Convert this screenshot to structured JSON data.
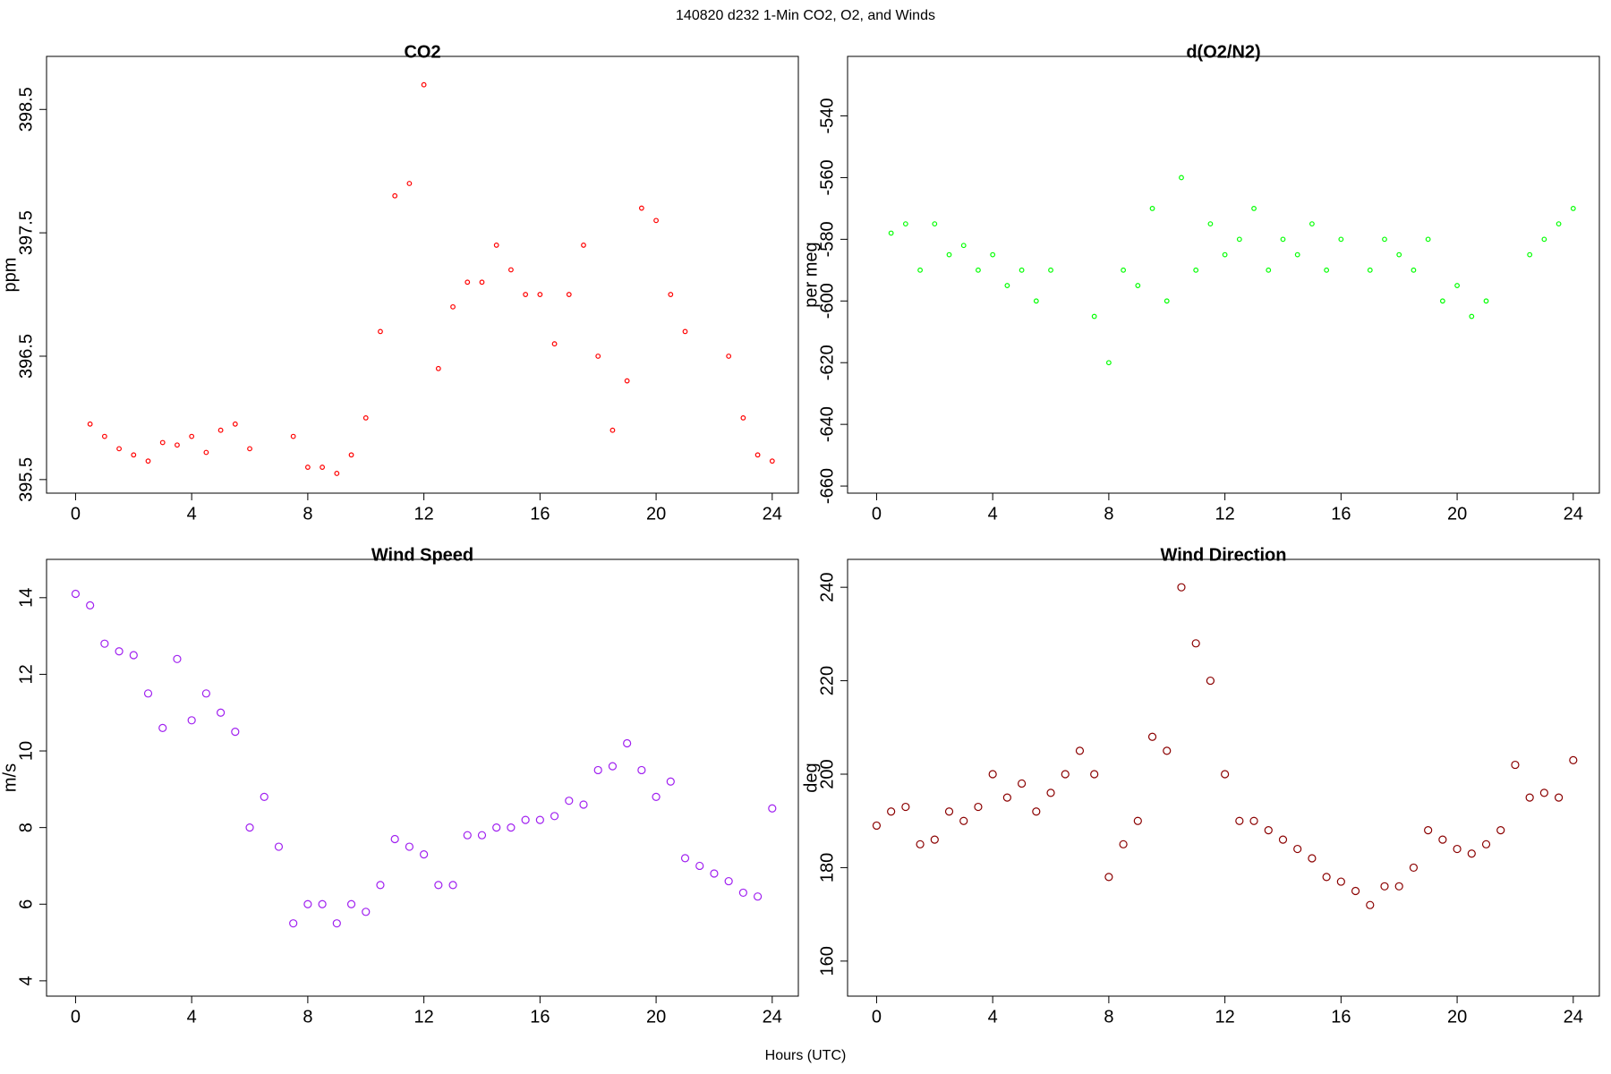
{
  "title": "140820   d232   1-Min CO2, O2, and Winds",
  "x_label": "Hours (UTC)",
  "chart_data": [
    {
      "type": "scatter",
      "title": "CO2",
      "y_label": "ppm",
      "color": "#ff0000",
      "x": [
        0,
        0.5,
        1,
        1.5,
        2,
        2.5,
        3,
        3.5,
        4,
        4.5,
        5,
        5.5,
        6,
        6.5,
        7,
        7.5,
        8,
        8.5,
        9,
        9.5,
        10,
        10.5,
        11,
        11.5,
        12,
        12.5,
        13,
        13.5,
        14,
        14.5,
        15,
        15.5,
        16,
        16.5,
        17,
        17.5,
        18,
        18.5,
        19,
        19.5,
        20,
        20.5,
        21,
        21.5,
        22,
        22.5,
        23,
        23.5,
        24
      ],
      "values": [
        null,
        395.95,
        395.85,
        395.75,
        395.7,
        395.65,
        395.8,
        395.78,
        395.85,
        395.72,
        395.9,
        395.95,
        395.75,
        null,
        null,
        395.85,
        395.6,
        395.6,
        395.55,
        395.7,
        396.0,
        396.7,
        397.8,
        397.9,
        398.7,
        396.4,
        396.9,
        397.1,
        397.1,
        397.4,
        397.2,
        397.0,
        397.0,
        396.6,
        397.0,
        397.4,
        396.5,
        395.9,
        396.3,
        397.7,
        397.6,
        397.0,
        396.7,
        null,
        null,
        396.5,
        396.0,
        395.7,
        395.65
      ],
      "xlim": [
        -1,
        24.9
      ],
      "ylim": [
        395.39,
        398.93
      ],
      "xticks": [
        0,
        4,
        8,
        12,
        16,
        20,
        24
      ],
      "yticks": [
        395.5,
        396.5,
        397.5,
        398.5
      ]
    },
    {
      "type": "scatter",
      "title": "d(O2/N2)",
      "y_label": "per meg",
      "color": "#00ff00",
      "x": [
        0,
        0.5,
        1,
        1.5,
        2,
        2.5,
        3,
        3.5,
        4,
        4.5,
        5,
        5.5,
        6,
        6.5,
        7,
        7.5,
        8,
        8.5,
        9,
        9.5,
        10,
        10.5,
        11,
        11.5,
        12,
        12.5,
        13,
        13.5,
        14,
        14.5,
        15,
        15.5,
        16,
        16.5,
        17,
        17.5,
        18,
        18.5,
        19,
        19.5,
        20,
        20.5,
        21,
        21.5,
        22,
        22.5,
        23,
        23.5,
        24
      ],
      "values": [
        null,
        -578,
        -575,
        -590,
        -575,
        -585,
        -582,
        -590,
        -585,
        -595,
        -590,
        -600,
        -590,
        null,
        null,
        -605,
        -620,
        -590,
        -595,
        -570,
        -600,
        -560,
        -590,
        -575,
        -585,
        -580,
        -570,
        -590,
        -580,
        -585,
        -575,
        -590,
        -580,
        null,
        -590,
        -580,
        -585,
        -590,
        -580,
        -600,
        -595,
        -605,
        -600,
        null,
        null,
        -585,
        -580,
        -575,
        -570
      ],
      "xlim": [
        -1,
        24.9
      ],
      "ylim": [
        -662.3,
        -520.7
      ],
      "xticks": [
        0,
        4,
        8,
        12,
        16,
        20,
        24
      ],
      "yticks": [
        -660,
        -640,
        -620,
        -600,
        -580,
        -560,
        -540
      ]
    },
    {
      "type": "scatter",
      "title": "Wind Speed",
      "y_label": "m/s",
      "color": "#a020f0",
      "x": [
        0,
        0.5,
        1,
        1.5,
        2,
        2.5,
        3,
        3.5,
        4,
        4.5,
        5,
        5.5,
        6,
        6.5,
        7,
        7.5,
        8,
        8.5,
        9,
        9.5,
        10,
        10.5,
        11,
        11.5,
        12,
        12.5,
        13,
        13.5,
        14,
        14.5,
        15,
        15.5,
        16,
        16.5,
        17,
        17.5,
        18,
        18.5,
        19,
        19.5,
        20,
        20.5,
        21,
        21.5,
        22,
        22.5,
        23,
        23.5,
        24
      ],
      "values": [
        14.1,
        13.8,
        12.8,
        12.6,
        12.5,
        11.5,
        10.6,
        12.4,
        10.8,
        11.5,
        11,
        10.5,
        8,
        8.8,
        7.5,
        5.5,
        6,
        6,
        5.5,
        6,
        5.8,
        6.5,
        7.7,
        7.5,
        7.3,
        6.5,
        6.5,
        7.8,
        7.8,
        8,
        8,
        8.2,
        8.2,
        8.3,
        8.7,
        8.6,
        9.5,
        9.6,
        10.2,
        9.5,
        8.8,
        9.2,
        7.2,
        7,
        6.8,
        6.6,
        6.3,
        6.2,
        8.5
      ],
      "xlim": [
        -1,
        24.9
      ],
      "ylim": [
        3.6,
        15.0
      ],
      "xticks": [
        0,
        4,
        8,
        12,
        16,
        20,
        24
      ],
      "yticks": [
        4,
        6,
        8,
        10,
        12,
        14
      ]
    },
    {
      "type": "scatter",
      "title": "Wind Direction",
      "y_label": "deg",
      "color": "#8b0000",
      "x": [
        0,
        0.5,
        1,
        1.5,
        2,
        2.5,
        3,
        3.5,
        4,
        4.5,
        5,
        5.5,
        6,
        6.5,
        7,
        7.5,
        8,
        8.5,
        9,
        9.5,
        10,
        10.5,
        11,
        11.5,
        12,
        12.5,
        13,
        13.5,
        14,
        14.5,
        15,
        15.5,
        16,
        16.5,
        17,
        17.5,
        18,
        18.5,
        19,
        19.5,
        20,
        20.5,
        21,
        21.5,
        22,
        22.5,
        23,
        23.5,
        24
      ],
      "values": [
        189,
        192,
        193,
        185,
        186,
        192,
        190,
        193,
        200,
        195,
        198,
        192,
        196,
        200,
        205,
        200,
        178,
        185,
        190,
        208,
        205,
        240,
        228,
        220,
        200,
        190,
        190,
        188,
        186,
        184,
        182,
        178,
        177,
        175,
        172,
        176,
        176,
        180,
        188,
        186,
        184,
        183,
        185,
        188,
        202,
        195,
        196,
        195,
        203
      ],
      "xlim": [
        -1,
        24.9
      ],
      "ylim": [
        152.5,
        245.97
      ],
      "xticks": [
        0,
        4,
        8,
        12,
        16,
        20,
        24
      ],
      "yticks": [
        160,
        180,
        200,
        220,
        240
      ]
    }
  ]
}
